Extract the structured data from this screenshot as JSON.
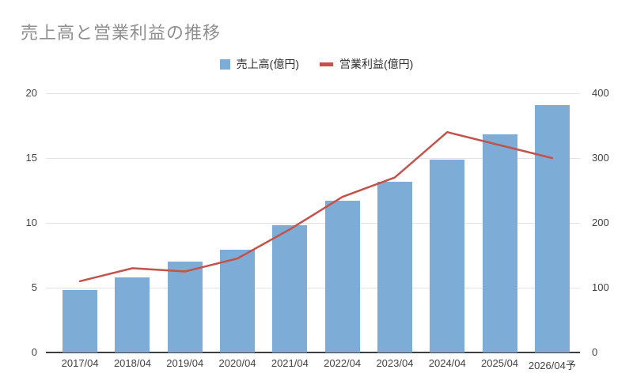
{
  "title": "売上高と営業利益の推移",
  "legend": {
    "items": [
      {
        "label": "売上高(億円)",
        "marker": "square",
        "color": "#7dadd6"
      },
      {
        "label": "営業利益(億円)",
        "marker": "dash",
        "color": "#c4524a"
      }
    ]
  },
  "colors": {
    "bar": "#7dadd6",
    "line": "#c4524a",
    "grid": "#e3e3e3",
    "axis": "#3c4043",
    "title_text": "#8f8f8f",
    "tick_text": "#424242"
  },
  "chart_data": {
    "type": "bar",
    "subtype": "combo-bar-line-dual-axis",
    "title": "売上高と営業利益の推移",
    "categories": [
      "2017/04",
      "2018/04",
      "2019/04",
      "2020/04",
      "2021/04",
      "2022/04",
      "2023/04",
      "2024/04",
      "2025/04",
      "2026/04予"
    ],
    "series": [
      {
        "name": "売上高(億円)",
        "type": "bar",
        "axis": "left",
        "color": "#7dadd6",
        "values": [
          4.8,
          5.8,
          7.0,
          7.9,
          9.8,
          11.7,
          13.2,
          14.9,
          16.8,
          19.1
        ]
      },
      {
        "name": "営業利益(億円)",
        "type": "line",
        "axis": "right",
        "color": "#c4524a",
        "values": [
          110,
          130,
          125,
          145,
          190,
          240,
          270,
          340,
          320,
          300
        ]
      }
    ],
    "left_axis": {
      "ticks": [
        0,
        5,
        10,
        15,
        20
      ],
      "range": [
        0,
        20
      ],
      "label": ""
    },
    "right_axis": {
      "ticks": [
        0,
        100,
        200,
        300,
        400
      ],
      "range": [
        0,
        400
      ],
      "label": ""
    },
    "grid": true,
    "legend_position": "top"
  }
}
